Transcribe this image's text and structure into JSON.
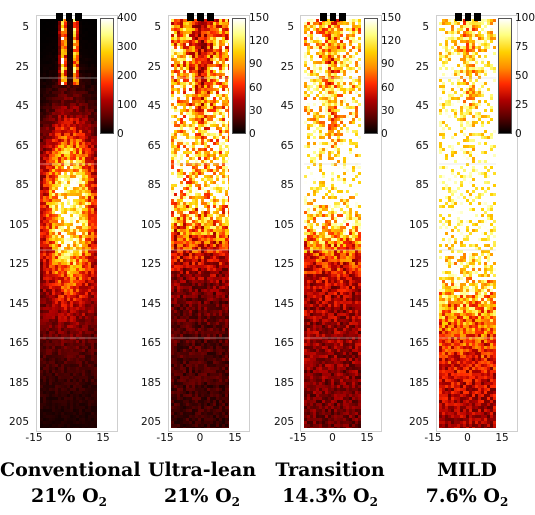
{
  "panels": [
    {
      "condition": "Conventional",
      "o2_prefix": "21% O",
      "o2_sub": "2",
      "colorbar_ticks": [
        "400",
        "300",
        "200",
        "100",
        "0"
      ],
      "x_ticks": [
        "-15",
        "0",
        "15"
      ],
      "y_ticks": [
        "5",
        "25",
        "45",
        "65",
        "85",
        "105",
        "125",
        "145",
        "165",
        "185",
        "205"
      ]
    },
    {
      "condition": "Ultra-lean",
      "o2_prefix": "21% O",
      "o2_sub": "2",
      "colorbar_ticks": [
        "150",
        "120",
        "90",
        "60",
        "30",
        "0"
      ],
      "x_ticks": [
        "-15",
        "0",
        "15"
      ],
      "y_ticks": [
        "5",
        "25",
        "45",
        "65",
        "85",
        "105",
        "125",
        "145",
        "165",
        "185",
        "205"
      ]
    },
    {
      "condition": "Transition",
      "o2_prefix": "14.3% O",
      "o2_sub": "2",
      "colorbar_ticks": [
        "150",
        "120",
        "90",
        "60",
        "30",
        "0"
      ],
      "x_ticks": [
        "-15",
        "0",
        "15"
      ],
      "y_ticks": [
        "5",
        "25",
        "45",
        "65",
        "85",
        "105",
        "125",
        "145",
        "165",
        "185",
        "205"
      ]
    },
    {
      "condition": "MILD",
      "o2_prefix": "7.6% O",
      "o2_sub": "2",
      "colorbar_ticks": [
        "100",
        "75",
        "50",
        "25",
        "0"
      ],
      "x_ticks": [
        "-15",
        "0",
        "15"
      ],
      "y_ticks": [
        "5",
        "25",
        "45",
        "65",
        "85",
        "105",
        "125",
        "145",
        "165",
        "185",
        "205"
      ]
    }
  ],
  "colormap": [
    "#000000",
    "#5a0000",
    "#b00000",
    "#ff2a00",
    "#ff8c00",
    "#ffd000",
    "#ffff80",
    "#ffffff"
  ]
}
